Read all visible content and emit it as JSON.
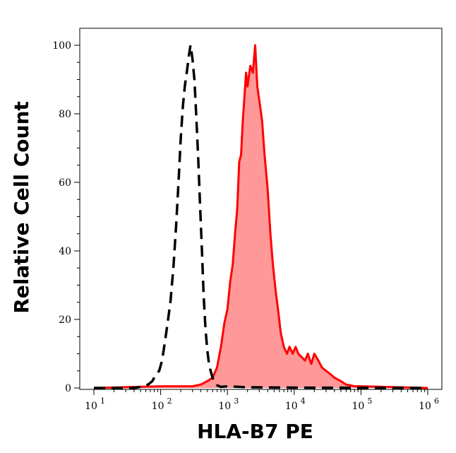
{
  "chart_data": {
    "type": "area",
    "title": "",
    "xlabel": "HLA-B7 PE",
    "ylabel": "Relative Cell Count",
    "xscale": "log",
    "xlim": [
      10,
      1000000
    ],
    "ylim": [
      0,
      100
    ],
    "x_ticks": [
      {
        "base": "10",
        "exp": "1",
        "value": 10
      },
      {
        "base": "10",
        "exp": "2",
        "value": 100
      },
      {
        "base": "10",
        "exp": "3",
        "value": 1000
      },
      {
        "base": "10",
        "exp": "4",
        "value": 10000
      },
      {
        "base": "10",
        "exp": "5",
        "value": 100000
      },
      {
        "base": "10",
        "exp": "6",
        "value": 1000000
      }
    ],
    "y_ticks": [
      "0",
      "20",
      "40",
      "60",
      "80",
      "100"
    ],
    "grid": false,
    "legend": "none",
    "series": [
      {
        "style": "dashed",
        "color": "#000000",
        "fill": "none",
        "x": [
          10,
          40,
          55,
          65,
          75,
          85,
          95,
          105,
          115,
          125,
          140,
          155,
          170,
          185,
          200,
          215,
          230,
          250,
          265,
          280,
          300,
          320,
          340,
          365,
          390,
          415,
          440,
          470,
          500,
          530,
          560,
          600,
          640,
          700,
          800,
          1000,
          2000,
          10000,
          1000000
        ],
        "y": [
          0,
          0,
          0.5,
          1,
          2,
          4,
          5,
          8,
          13,
          18,
          25,
          35,
          47,
          60,
          73,
          82,
          88,
          93,
          97,
          100,
          96,
          90,
          80,
          67,
          53,
          40,
          27,
          17,
          11,
          7,
          5,
          3,
          1.5,
          0.8,
          0.3,
          0.5,
          0.2,
          0.1,
          0
        ]
      },
      {
        "style": "solid",
        "color": "#ff0000",
        "fill": "#ff9999",
        "x": [
          10,
          100,
          300,
          400,
          500,
          600,
          700,
          800,
          900,
          1000,
          1100,
          1200,
          1300,
          1400,
          1500,
          1600,
          1700,
          1800,
          1900,
          2000,
          2200,
          2400,
          2600,
          2800,
          3000,
          3300,
          3600,
          4000,
          4400,
          4800,
          5300,
          5800,
          6300,
          7000,
          7800,
          8500,
          9500,
          10500,
          11500,
          13000,
          14500,
          16000,
          18000,
          20000,
          23000,
          26000,
          30000,
          35000,
          40000,
          50000,
          60000,
          80000,
          100000,
          1000000
        ],
        "y": [
          0,
          0.5,
          0.5,
          1,
          2,
          3,
          6,
          12,
          19,
          23,
          31,
          36,
          45,
          52,
          66,
          68,
          78,
          85,
          92,
          88,
          94,
          92,
          100,
          88,
          84,
          78,
          68,
          58,
          45,
          36,
          28,
          22,
          16,
          12,
          10,
          12,
          10,
          12,
          10,
          9,
          8,
          10,
          7,
          10,
          8,
          6,
          5,
          4,
          3,
          2,
          1,
          0.5,
          0.5,
          0
        ]
      }
    ]
  }
}
